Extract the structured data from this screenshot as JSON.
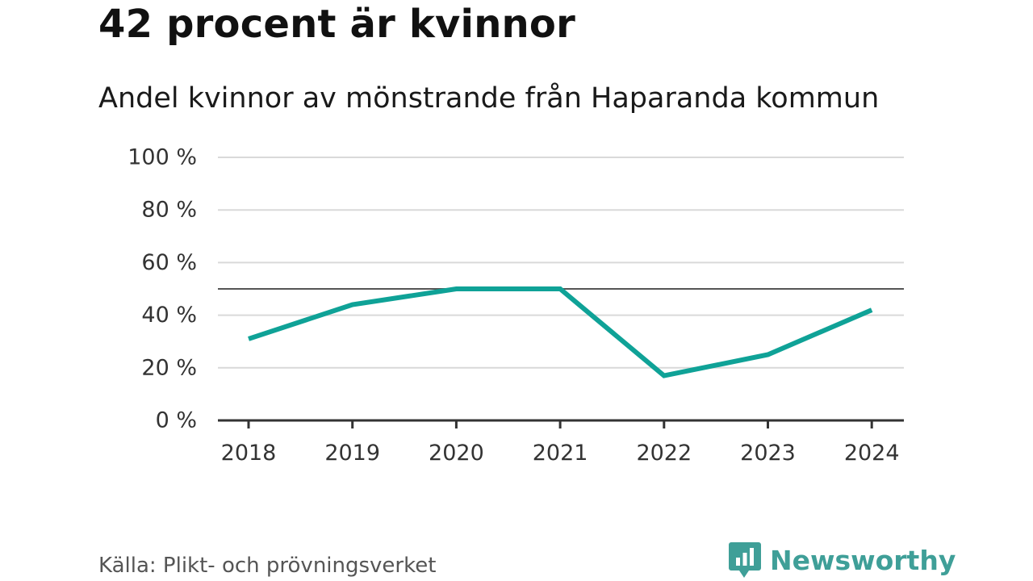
{
  "title": "42 procent är kvinnor",
  "subtitle": "Andel kvinnor av mönstrande från Haparanda kommun",
  "source": "Källa: Plikt- och prövningsverket",
  "brand": {
    "name": "Newsworthy",
    "icon": "newsworthy-logo-icon",
    "color": "#3f9f98"
  },
  "colors": {
    "line": "#0fa297",
    "grid": "#d9d9d9",
    "axis": "#333333",
    "reference": "#555555",
    "text": "#333333"
  },
  "chart_data": {
    "type": "line",
    "x": [
      "2018",
      "2019",
      "2020",
      "2021",
      "2022",
      "2023",
      "2024"
    ],
    "series": [
      {
        "values": [
          31,
          44,
          50,
          50,
          17,
          25,
          42
        ]
      }
    ],
    "ylim": [
      0,
      100
    ],
    "yticks": [
      0,
      20,
      40,
      60,
      80,
      100
    ],
    "ytick_labels": [
      "0 %",
      "20 %",
      "40 %",
      "60 %",
      "80 %",
      "100 %"
    ],
    "reference_line": 50,
    "grid": true,
    "xlabel": "",
    "ylabel": ""
  }
}
